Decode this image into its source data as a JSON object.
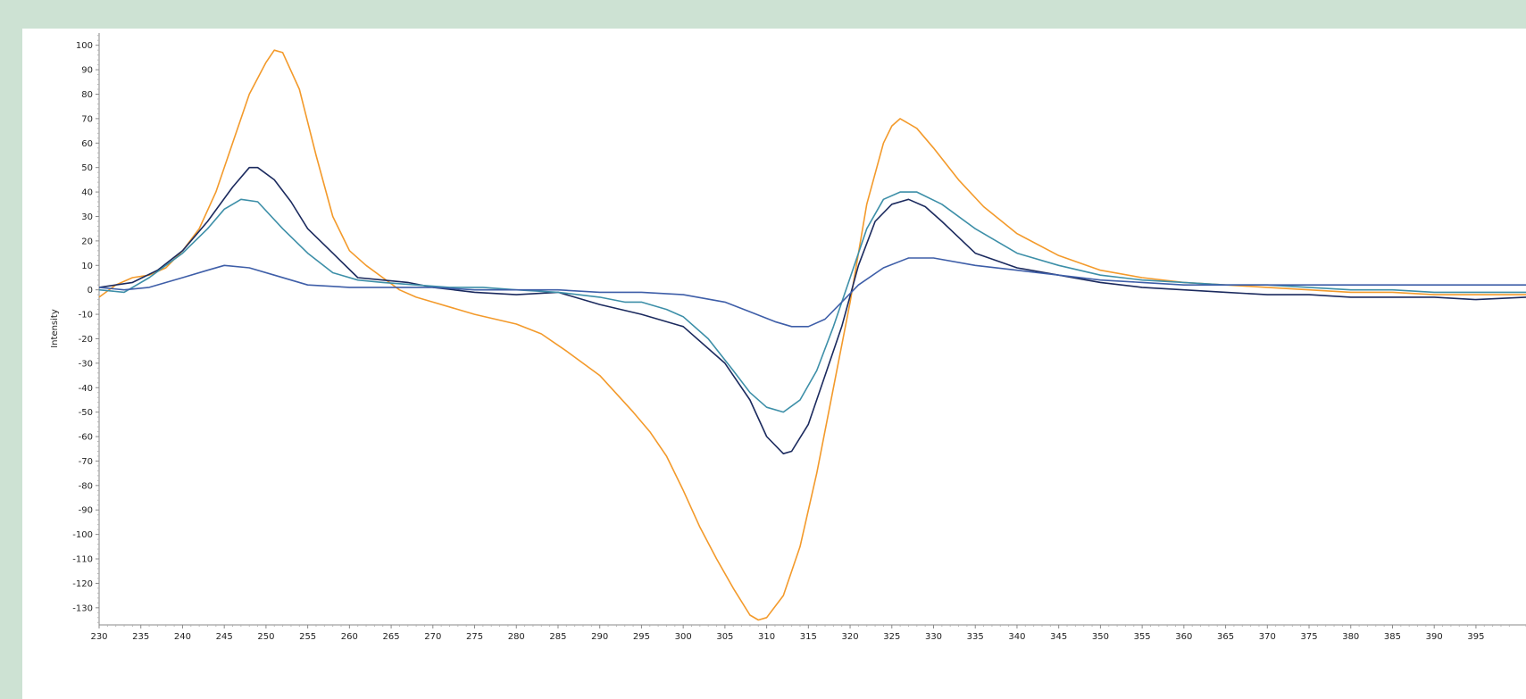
{
  "page": {
    "background": "#cde2d3",
    "panel_background": "#ffffff"
  },
  "chart_data": {
    "type": "line",
    "ylabel": "Intensity",
    "xlim": [
      230,
      401
    ],
    "ylim": [
      -137,
      105
    ],
    "x_ticks": [
      230,
      235,
      240,
      245,
      250,
      255,
      260,
      265,
      270,
      275,
      280,
      285,
      290,
      295,
      300,
      305,
      310,
      315,
      320,
      325,
      330,
      335,
      340,
      345,
      350,
      355,
      360,
      365,
      370,
      375,
      380,
      385,
      390,
      395
    ],
    "y_ticks": [
      100,
      90,
      80,
      70,
      60,
      50,
      40,
      30,
      20,
      10,
      0,
      -10,
      -20,
      -30,
      -40,
      -50,
      -60,
      -70,
      -80,
      -90,
      -100,
      -110,
      -120,
      -130
    ],
    "grid": false,
    "legend": "none",
    "series": [
      {
        "color": "#f39a2b",
        "points": [
          [
            230,
            -3
          ],
          [
            232,
            2
          ],
          [
            234,
            5
          ],
          [
            236,
            6
          ],
          [
            238,
            9
          ],
          [
            240,
            16
          ],
          [
            242,
            25
          ],
          [
            244,
            40
          ],
          [
            246,
            60
          ],
          [
            248,
            80
          ],
          [
            250,
            93
          ],
          [
            251,
            98
          ],
          [
            252,
            97
          ],
          [
            254,
            82
          ],
          [
            256,
            55
          ],
          [
            258,
            30
          ],
          [
            260,
            16
          ],
          [
            262,
            10
          ],
          [
            264,
            5
          ],
          [
            266,
            0
          ],
          [
            268,
            -3
          ],
          [
            270,
            -5
          ],
          [
            275,
            -10
          ],
          [
            280,
            -14
          ],
          [
            283,
            -18
          ],
          [
            286,
            -25
          ],
          [
            290,
            -35
          ],
          [
            294,
            -50
          ],
          [
            296,
            -58
          ],
          [
            298,
            -68
          ],
          [
            300,
            -82
          ],
          [
            302,
            -97
          ],
          [
            304,
            -110
          ],
          [
            306,
            -122
          ],
          [
            308,
            -133
          ],
          [
            309,
            -135
          ],
          [
            310,
            -134
          ],
          [
            312,
            -125
          ],
          [
            314,
            -105
          ],
          [
            316,
            -75
          ],
          [
            318,
            -40
          ],
          [
            320,
            -5
          ],
          [
            322,
            35
          ],
          [
            324,
            60
          ],
          [
            325,
            67
          ],
          [
            326,
            70
          ],
          [
            328,
            66
          ],
          [
            330,
            58
          ],
          [
            333,
            45
          ],
          [
            336,
            34
          ],
          [
            340,
            23
          ],
          [
            345,
            14
          ],
          [
            350,
            8
          ],
          [
            355,
            5
          ],
          [
            360,
            3
          ],
          [
            365,
            2
          ],
          [
            370,
            1
          ],
          [
            375,
            0
          ],
          [
            380,
            -1
          ],
          [
            385,
            -1
          ],
          [
            390,
            -2
          ],
          [
            395,
            -2
          ],
          [
            401,
            -2
          ]
        ]
      },
      {
        "color": "#1b2a5e",
        "points": [
          [
            230,
            1
          ],
          [
            234,
            3
          ],
          [
            237,
            8
          ],
          [
            240,
            16
          ],
          [
            243,
            28
          ],
          [
            246,
            42
          ],
          [
            248,
            50
          ],
          [
            249,
            50
          ],
          [
            251,
            45
          ],
          [
            253,
            36
          ],
          [
            255,
            25
          ],
          [
            258,
            15
          ],
          [
            261,
            5
          ],
          [
            264,
            4
          ],
          [
            267,
            3
          ],
          [
            270,
            1
          ],
          [
            275,
            -1
          ],
          [
            280,
            -2
          ],
          [
            285,
            -1
          ],
          [
            290,
            -6
          ],
          [
            295,
            -10
          ],
          [
            300,
            -15
          ],
          [
            305,
            -30
          ],
          [
            308,
            -45
          ],
          [
            310,
            -60
          ],
          [
            312,
            -67
          ],
          [
            313,
            -66
          ],
          [
            315,
            -55
          ],
          [
            317,
            -35
          ],
          [
            319,
            -15
          ],
          [
            321,
            10
          ],
          [
            323,
            28
          ],
          [
            325,
            35
          ],
          [
            327,
            37
          ],
          [
            329,
            34
          ],
          [
            331,
            28
          ],
          [
            335,
            15
          ],
          [
            340,
            9
          ],
          [
            345,
            6
          ],
          [
            350,
            3
          ],
          [
            355,
            1
          ],
          [
            360,
            0
          ],
          [
            365,
            -1
          ],
          [
            370,
            -2
          ],
          [
            375,
            -2
          ],
          [
            380,
            -3
          ],
          [
            385,
            -3
          ],
          [
            390,
            -3
          ],
          [
            395,
            -4
          ],
          [
            401,
            -3
          ]
        ]
      },
      {
        "color": "#3d8fa8",
        "points": [
          [
            230,
            0
          ],
          [
            233,
            -1
          ],
          [
            236,
            5
          ],
          [
            240,
            15
          ],
          [
            243,
            25
          ],
          [
            245,
            33
          ],
          [
            247,
            37
          ],
          [
            249,
            36
          ],
          [
            252,
            25
          ],
          [
            255,
            15
          ],
          [
            258,
            7
          ],
          [
            261,
            4
          ],
          [
            264,
            3
          ],
          [
            268,
            2
          ],
          [
            272,
            1
          ],
          [
            276,
            1
          ],
          [
            280,
            0
          ],
          [
            285,
            -1
          ],
          [
            290,
            -3
          ],
          [
            293,
            -5
          ],
          [
            295,
            -5
          ],
          [
            298,
            -8
          ],
          [
            300,
            -11
          ],
          [
            303,
            -20
          ],
          [
            306,
            -33
          ],
          [
            308,
            -42
          ],
          [
            310,
            -48
          ],
          [
            312,
            -50
          ],
          [
            314,
            -45
          ],
          [
            316,
            -33
          ],
          [
            318,
            -15
          ],
          [
            320,
            5
          ],
          [
            322,
            25
          ],
          [
            324,
            37
          ],
          [
            326,
            40
          ],
          [
            328,
            40
          ],
          [
            331,
            35
          ],
          [
            335,
            25
          ],
          [
            340,
            15
          ],
          [
            345,
            10
          ],
          [
            350,
            6
          ],
          [
            355,
            4
          ],
          [
            360,
            3
          ],
          [
            365,
            2
          ],
          [
            370,
            2
          ],
          [
            375,
            1
          ],
          [
            380,
            0
          ],
          [
            385,
            0
          ],
          [
            390,
            -1
          ],
          [
            395,
            -1
          ],
          [
            401,
            -1
          ]
        ]
      },
      {
        "color": "#3e5ea8",
        "points": [
          [
            230,
            1
          ],
          [
            233,
            0
          ],
          [
            236,
            1
          ],
          [
            240,
            5
          ],
          [
            243,
            8
          ],
          [
            245,
            10
          ],
          [
            248,
            9
          ],
          [
            251,
            6
          ],
          [
            255,
            2
          ],
          [
            260,
            1
          ],
          [
            265,
            1
          ],
          [
            270,
            1
          ],
          [
            275,
            0
          ],
          [
            280,
            0
          ],
          [
            285,
            0
          ],
          [
            290,
            -1
          ],
          [
            295,
            -1
          ],
          [
            300,
            -2
          ],
          [
            305,
            -5
          ],
          [
            308,
            -9
          ],
          [
            311,
            -13
          ],
          [
            313,
            -15
          ],
          [
            315,
            -15
          ],
          [
            317,
            -12
          ],
          [
            319,
            -5
          ],
          [
            321,
            2
          ],
          [
            324,
            9
          ],
          [
            327,
            13
          ],
          [
            330,
            13
          ],
          [
            335,
            10
          ],
          [
            340,
            8
          ],
          [
            345,
            6
          ],
          [
            350,
            4
          ],
          [
            355,
            3
          ],
          [
            360,
            2
          ],
          [
            365,
            2
          ],
          [
            370,
            2
          ],
          [
            375,
            2
          ],
          [
            380,
            2
          ],
          [
            385,
            2
          ],
          [
            390,
            2
          ],
          [
            395,
            2
          ],
          [
            401,
            2
          ]
        ]
      }
    ]
  }
}
